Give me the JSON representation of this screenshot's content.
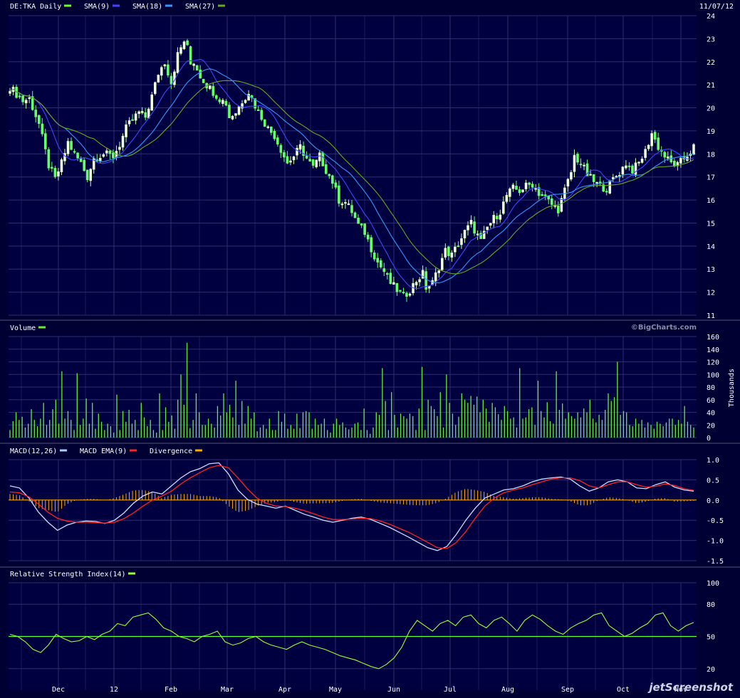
{
  "colors": {
    "background": "#000033",
    "panel": "#000040",
    "grid": "#2e2e70",
    "text": "#ffffff",
    "bullish_candle": "#ccff99",
    "bearish_candle": "#66ff66",
    "sma9": "#4444ff",
    "sma18": "#3399ff",
    "sma27": "#66aa22",
    "volume": "#66ee33",
    "macd": "#ccddff",
    "macd_ema": "#ff2222",
    "divergence": "#ffaa00",
    "rsi": "#99ff33",
    "rsi_midline": "#66ff33"
  },
  "header": {
    "date": "11/07/12"
  },
  "watermark": {
    "site": "©BigCharts.com",
    "brand": "jetScreenshot"
  },
  "x_axis": {
    "ticks": [
      "Dec",
      "12",
      "Feb",
      "Mar",
      "Apr",
      "May",
      "Jun",
      "Jul",
      "Aug",
      "Sep",
      "Oct",
      "Nov"
    ]
  },
  "legends": {
    "price": [
      {
        "label": "DE:TKA Daily",
        "color": "#66ff33"
      },
      {
        "label": "SMA(9)",
        "color": "#4444ff"
      },
      {
        "label": "SMA(18)",
        "color": "#3399ff"
      },
      {
        "label": "SMA(27)",
        "color": "#66aa22"
      }
    ],
    "volume": [
      {
        "label": "Volume",
        "color": "#66ee33"
      }
    ],
    "macd": [
      {
        "label": "MACD(12,26)",
        "color": "#aaccff"
      },
      {
        "label": "MACD EMA(9)",
        "color": "#ff2222"
      },
      {
        "label": "Divergence",
        "color": "#ffaa00"
      }
    ],
    "rsi": [
      {
        "label": "Relative Strength Index(14)",
        "color": "#99ff33"
      }
    ]
  },
  "chart_data": [
    {
      "type": "candlestick",
      "title": "DE:TKA Daily",
      "ylim": [
        11,
        24
      ],
      "yticks": [
        "11",
        "12",
        "13",
        "14",
        "15",
        "16",
        "17",
        "18",
        "19",
        "20",
        "21",
        "22",
        "23",
        "24"
      ],
      "price_path": [
        [
          0,
          20.9
        ],
        [
          4,
          20.3
        ],
        [
          6,
          20.4
        ],
        [
          9,
          19.3
        ],
        [
          12,
          17.5
        ],
        [
          14,
          16.9
        ],
        [
          16,
          17.6
        ],
        [
          18,
          18.5
        ],
        [
          20,
          18.0
        ],
        [
          22,
          17.6
        ],
        [
          24,
          17.0
        ],
        [
          26,
          17.8
        ],
        [
          29,
          18.0
        ],
        [
          32,
          17.9
        ],
        [
          34,
          18.4
        ],
        [
          36,
          19.1
        ],
        [
          38,
          19.5
        ],
        [
          40,
          19.8
        ],
        [
          42,
          19.6
        ],
        [
          44,
          20.5
        ],
        [
          46,
          21.5
        ],
        [
          48,
          22.0
        ],
        [
          50,
          21.1
        ],
        [
          52,
          22.3
        ],
        [
          54,
          22.9
        ],
        [
          55,
          22.6
        ],
        [
          56,
          21.9
        ],
        [
          57,
          22.0
        ],
        [
          59,
          21.4
        ],
        [
          61,
          21.0
        ],
        [
          63,
          20.7
        ],
        [
          65,
          20.4
        ],
        [
          67,
          20.2
        ],
        [
          68,
          19.6
        ],
        [
          70,
          19.8
        ],
        [
          72,
          20.3
        ],
        [
          74,
          20.7
        ],
        [
          76,
          20.1
        ],
        [
          78,
          19.6
        ],
        [
          80,
          19.1
        ],
        [
          82,
          18.8
        ],
        [
          84,
          18.2
        ],
        [
          86,
          17.6
        ],
        [
          88,
          17.9
        ],
        [
          90,
          18.3
        ],
        [
          92,
          17.8
        ],
        [
          94,
          17.4
        ],
        [
          96,
          17.9
        ],
        [
          98,
          17.3
        ],
        [
          100,
          16.8
        ],
        [
          102,
          16.0
        ],
        [
          104,
          15.9
        ],
        [
          106,
          15.5
        ],
        [
          108,
          14.9
        ],
        [
          110,
          14.6
        ],
        [
          112,
          13.9
        ],
        [
          114,
          13.3
        ],
        [
          116,
          12.9
        ],
        [
          118,
          12.4
        ],
        [
          120,
          12.1
        ],
        [
          122,
          11.8
        ],
        [
          124,
          12.1
        ],
        [
          126,
          12.5
        ],
        [
          128,
          12.8
        ],
        [
          129,
          12.2
        ],
        [
          131,
          12.4
        ],
        [
          133,
          13.1
        ],
        [
          135,
          13.8
        ],
        [
          137,
          13.6
        ],
        [
          139,
          14.1
        ],
        [
          141,
          14.6
        ],
        [
          143,
          15.0
        ],
        [
          144,
          14.7
        ],
        [
          146,
          14.2
        ],
        [
          148,
          14.8
        ],
        [
          150,
          15.2
        ],
        [
          152,
          15.5
        ],
        [
          154,
          16.2
        ],
        [
          156,
          16.5
        ],
        [
          158,
          16.4
        ],
        [
          160,
          16.6
        ],
        [
          162,
          16.7
        ],
        [
          164,
          16.3
        ],
        [
          166,
          16.1
        ],
        [
          168,
          15.8
        ],
        [
          170,
          15.6
        ],
        [
          172,
          16.4
        ],
        [
          174,
          17.2
        ],
        [
          175,
          17.9
        ],
        [
          177,
          17.6
        ],
        [
          179,
          17.1
        ],
        [
          181,
          16.8
        ],
        [
          183,
          16.6
        ],
        [
          185,
          16.5
        ],
        [
          187,
          16.9
        ],
        [
          189,
          17.2
        ],
        [
          191,
          17.6
        ],
        [
          193,
          17.3
        ],
        [
          195,
          17.6
        ],
        [
          197,
          18.1
        ],
        [
          199,
          18.9
        ],
        [
          201,
          18.3
        ],
        [
          203,
          17.9
        ],
        [
          205,
          17.6
        ],
        [
          207,
          17.5
        ],
        [
          209,
          17.8
        ],
        [
          211,
          18.1
        ],
        [
          212,
          18.3
        ]
      ]
    },
    {
      "type": "bar",
      "title": "Volume",
      "ylabel": "Thousands",
      "ylim": [
        0,
        160
      ],
      "yticks": [
        "0",
        "20",
        "40",
        "60",
        "80",
        "100",
        "120",
        "140",
        "160"
      ],
      "values": [
        12,
        26,
        40,
        28,
        33,
        16,
        22,
        45,
        28,
        18,
        30,
        55,
        20,
        28,
        45,
        60,
        22,
        105,
        30,
        42,
        28,
        12,
        102,
        20,
        30,
        62,
        22,
        55,
        14,
        38,
        25,
        12,
        22,
        18,
        8,
        68,
        12,
        42,
        25,
        44,
        22,
        28,
        12,
        55,
        32,
        18,
        28,
        12,
        8,
        70,
        12,
        48,
        25,
        35,
        14,
        60,
        100,
        52,
        150,
        15,
        28,
        70,
        40,
        20,
        20,
        30,
        22,
        16,
        50,
        35,
        70,
        40,
        52,
        32,
        90,
        20,
        58,
        22,
        50,
        30,
        40,
        10,
        16,
        20,
        14,
        30,
        12,
        12,
        42,
        25,
        38,
        14,
        20,
        14,
        38,
        15,
        40,
        42,
        40,
        14,
        30,
        20,
        22,
        30,
        12,
        8,
        22,
        30,
        20,
        24,
        16,
        13,
        16,
        22,
        24,
        12,
        46,
        12,
        6,
        16,
        40,
        36,
        110,
        58,
        12,
        72,
        36,
        16,
        38,
        34,
        30,
        38,
        34,
        12,
        46,
        112,
        12,
        60,
        50,
        45,
        34,
        72,
        16,
        100,
        55,
        38,
        20,
        33,
        70,
        60,
        55,
        66,
        52,
        65,
        40,
        60,
        46,
        25,
        55,
        48,
        37,
        28,
        50,
        42,
        30,
        32,
        16,
        110,
        30,
        32,
        45,
        48,
        20,
        90,
        42,
        32,
        56,
        26,
        22,
        105,
        44,
        54,
        30,
        40,
        34,
        30,
        40,
        32,
        46,
        40,
        60,
        30,
        24,
        36,
        28,
        44,
        70,
        58,
        64,
        120,
        36,
        42,
        40,
        20,
        18,
        30,
        22,
        28,
        16,
        24,
        20,
        14,
        25,
        22,
        18,
        24,
        30,
        30,
        20,
        28,
        22,
        50,
        25,
        20,
        16
      ]
    },
    {
      "type": "line",
      "title": "MACD(12,26)",
      "ylim": [
        -1.5,
        1.0
      ],
      "yticks": [
        "1.0",
        "0.5",
        "0.0",
        "-0.5",
        "-1.0",
        "-1.5"
      ],
      "series": [
        {
          "name": "MACD(12,26)",
          "values": [
            0.35,
            0.3,
            0.05,
            -0.3,
            -0.55,
            -0.75,
            -0.62,
            -0.55,
            -0.52,
            -0.53,
            -0.58,
            -0.5,
            -0.32,
            -0.08,
            0.1,
            0.2,
            0.15,
            0.35,
            0.55,
            0.7,
            0.78,
            0.9,
            0.92,
            0.65,
            0.25,
            0.02,
            -0.1,
            -0.15,
            -0.2,
            -0.15,
            -0.25,
            -0.35,
            -0.42,
            -0.5,
            -0.55,
            -0.5,
            -0.45,
            -0.42,
            -0.48,
            -0.58,
            -0.68,
            -0.8,
            -0.92,
            -1.05,
            -1.18,
            -1.25,
            -1.15,
            -0.85,
            -0.5,
            -0.2,
            0.05,
            0.15,
            0.25,
            0.28,
            0.35,
            0.45,
            0.52,
            0.55,
            0.57,
            0.52,
            0.35,
            0.22,
            0.3,
            0.45,
            0.5,
            0.45,
            0.3,
            0.28,
            0.38,
            0.45,
            0.32,
            0.25,
            0.22
          ]
        },
        {
          "name": "MACD EMA(9)",
          "values": [
            0.2,
            0.18,
            0.08,
            -0.1,
            -0.3,
            -0.45,
            -0.52,
            -0.55,
            -0.55,
            -0.56,
            -0.57,
            -0.55,
            -0.46,
            -0.32,
            -0.15,
            0.0,
            0.1,
            0.22,
            0.4,
            0.55,
            0.68,
            0.8,
            0.86,
            0.8,
            0.55,
            0.28,
            0.05,
            -0.08,
            -0.15,
            -0.16,
            -0.2,
            -0.26,
            -0.34,
            -0.42,
            -0.48,
            -0.48,
            -0.47,
            -0.45,
            -0.46,
            -0.52,
            -0.6,
            -0.7,
            -0.8,
            -0.92,
            -1.05,
            -1.18,
            -1.2,
            -1.05,
            -0.78,
            -0.45,
            -0.15,
            0.05,
            0.18,
            0.25,
            0.3,
            0.38,
            0.45,
            0.52,
            0.55,
            0.55,
            0.48,
            0.35,
            0.3,
            0.38,
            0.45,
            0.45,
            0.38,
            0.32,
            0.34,
            0.4,
            0.36,
            0.28,
            0.24
          ]
        },
        {
          "name": "Divergence",
          "values": [
            0.15,
            0.12,
            -0.03,
            -0.2,
            -0.25,
            -0.3,
            -0.1,
            0.0,
            0.03,
            0.03,
            -0.01,
            0.05,
            0.14,
            0.24,
            0.25,
            0.2,
            0.05,
            0.13,
            0.15,
            0.15,
            0.1,
            0.1,
            0.06,
            -0.15,
            -0.3,
            -0.26,
            -0.15,
            -0.07,
            -0.05,
            0.01,
            -0.05,
            -0.09,
            -0.08,
            -0.08,
            -0.07,
            -0.02,
            0.02,
            0.03,
            -0.02,
            -0.06,
            -0.08,
            -0.1,
            -0.12,
            -0.13,
            -0.13,
            -0.07,
            0.05,
            0.2,
            0.28,
            0.25,
            0.2,
            0.1,
            0.07,
            0.03,
            0.05,
            0.07,
            0.07,
            0.03,
            0.02,
            -0.03,
            -0.13,
            -0.13,
            0.0,
            0.07,
            0.05,
            0.0,
            -0.08,
            -0.04,
            0.04,
            0.05,
            -0.04,
            -0.03,
            -0.02
          ]
        }
      ]
    },
    {
      "type": "line",
      "title": "Relative Strength Index(14)",
      "ylim": [
        0,
        100
      ],
      "yticks": [
        "100",
        "80",
        "50",
        "20"
      ],
      "midline": 50,
      "values": [
        52,
        50,
        45,
        38,
        35,
        42,
        52,
        48,
        45,
        46,
        50,
        47,
        52,
        55,
        62,
        60,
        68,
        70,
        72,
        66,
        58,
        55,
        50,
        48,
        45,
        50,
        52,
        55,
        45,
        42,
        44,
        48,
        50,
        45,
        42,
        40,
        38,
        42,
        45,
        42,
        40,
        38,
        35,
        32,
        30,
        28,
        25,
        22,
        20,
        24,
        30,
        40,
        55,
        65,
        60,
        55,
        62,
        65,
        60,
        68,
        70,
        62,
        58,
        65,
        68,
        62,
        55,
        65,
        70,
        66,
        60,
        55,
        52,
        58,
        62,
        65,
        70,
        72,
        60,
        55,
        50,
        53,
        58,
        62,
        70,
        72,
        60,
        55,
        60,
        63
      ]
    }
  ]
}
